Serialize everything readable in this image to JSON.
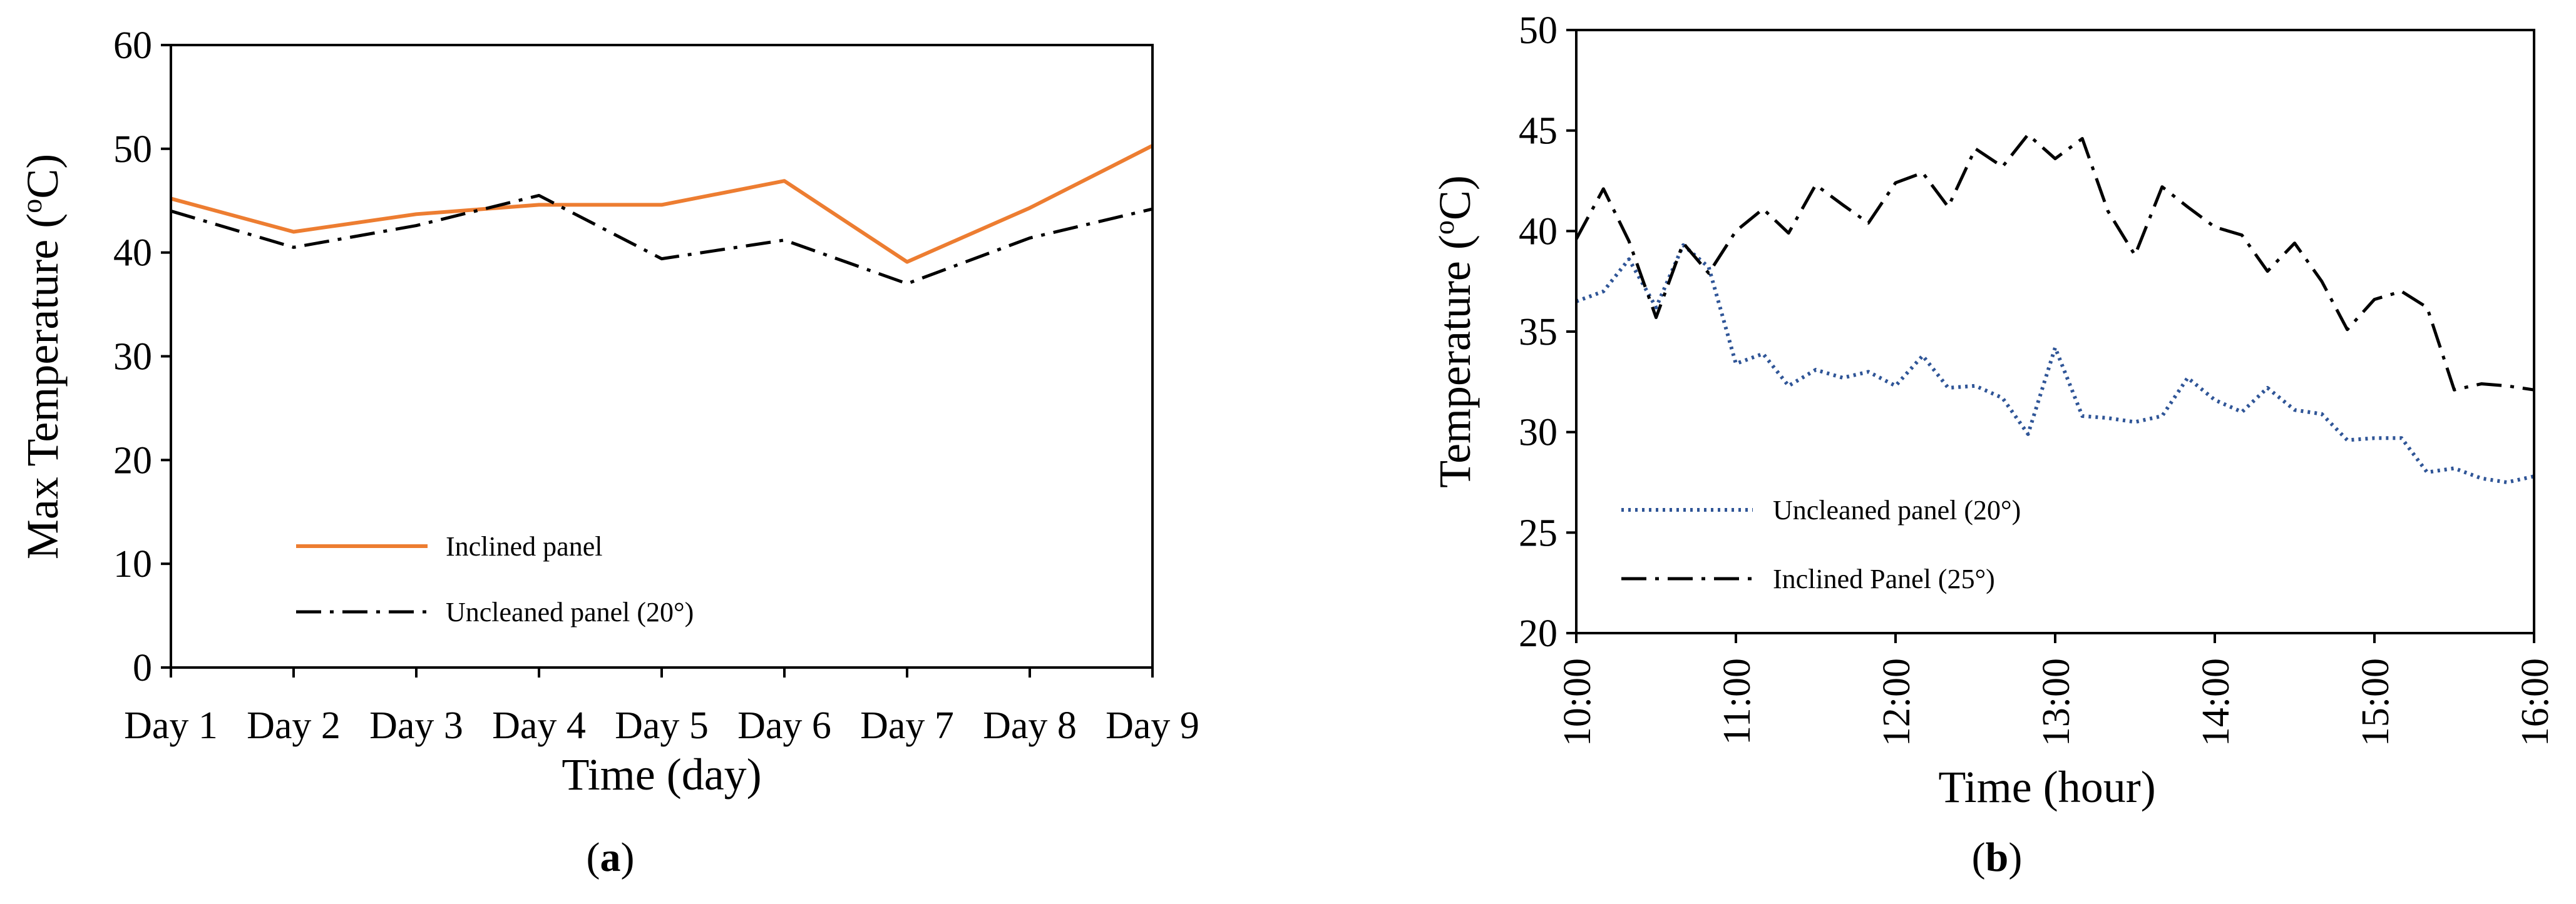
{
  "chart_data": [
    {
      "type": "line",
      "xlabel": "Time (day)",
      "ylabel": "Max Temperature (°C)",
      "ylabel_parts": [
        "Max Temperature (",
        "o",
        "C)"
      ],
      "caption_open": "(",
      "caption_letter": "a",
      "caption_close": ")",
      "categories": [
        "Day 1",
        "Day 2",
        "Day 3",
        "Day 4",
        "Day 5",
        "Day 6",
        "Day 7",
        "Day 8",
        "Day 9"
      ],
      "ylim": [
        0,
        60
      ],
      "yticks": [
        0,
        10,
        20,
        30,
        40,
        50,
        60
      ],
      "series": [
        {
          "name": "Inclined panel",
          "color": "#ED7D31",
          "style": "solid",
          "values": [
            45.2,
            42.0,
            43.7,
            44.6,
            44.6,
            46.9,
            39.1,
            44.3,
            50.3
          ]
        },
        {
          "name": "Uncleaned panel (20°)",
          "color": "#000000",
          "style": "dashdot",
          "values": [
            44.0,
            40.5,
            42.6,
            45.5,
            39.4,
            41.2,
            37.0,
            41.4,
            44.2
          ]
        }
      ]
    },
    {
      "type": "line",
      "xlabel": "Time (hour)",
      "ylabel": "Temperature (°C)",
      "ylabel_parts": [
        "Temperature (",
        "o",
        "C)"
      ],
      "caption_open": "(",
      "caption_letter": "b",
      "caption_close": ")",
      "xlim": [
        10,
        16
      ],
      "xticks": [
        10,
        11,
        12,
        13,
        14,
        15,
        16
      ],
      "xtick_labels": [
        "10:00",
        "11:00",
        "12:00",
        "13:00",
        "14:00",
        "15:00",
        "16:00"
      ],
      "ylim": [
        20,
        50
      ],
      "yticks": [
        20,
        25,
        30,
        35,
        40,
        45,
        50
      ],
      "series": [
        {
          "name": "Uncleaned panel (20°)",
          "color": "#2F5597",
          "style": "dotted",
          "x": [
            10.0,
            10.17,
            10.33,
            10.5,
            10.67,
            10.83,
            11.0,
            11.17,
            11.33,
            11.5,
            11.67,
            11.83,
            12.0,
            12.17,
            12.33,
            12.5,
            12.67,
            12.83,
            13.0,
            13.17,
            13.33,
            13.5,
            13.67,
            13.83,
            14.0,
            14.17,
            14.33,
            14.5,
            14.67,
            14.83,
            15.0,
            15.17,
            15.33,
            15.5,
            15.67,
            15.83,
            16.0
          ],
          "values": [
            36.5,
            37.0,
            38.6,
            36.2,
            39.3,
            38.2,
            33.4,
            33.9,
            32.3,
            33.1,
            32.7,
            33.0,
            32.3,
            33.8,
            32.2,
            32.3,
            31.7,
            29.9,
            34.2,
            30.8,
            30.7,
            30.5,
            30.8,
            32.7,
            31.6,
            31.0,
            32.2,
            31.1,
            30.9,
            29.6,
            29.7,
            29.7,
            28.0,
            28.2,
            27.7,
            27.5,
            27.8
          ]
        },
        {
          "name": "Inclined Panel (25°)",
          "color": "#000000",
          "style": "dashdot",
          "x": [
            10.0,
            10.17,
            10.33,
            10.5,
            10.67,
            10.83,
            11.0,
            11.17,
            11.33,
            11.5,
            11.67,
            11.83,
            12.0,
            12.17,
            12.33,
            12.5,
            12.67,
            12.83,
            13.0,
            13.17,
            13.33,
            13.5,
            13.67,
            13.83,
            14.0,
            14.17,
            14.33,
            14.5,
            14.67,
            14.83,
            15.0,
            15.17,
            15.33,
            15.5,
            15.67,
            15.83,
            16.0
          ],
          "values": [
            39.6,
            42.1,
            39.5,
            35.7,
            39.4,
            37.9,
            40.0,
            41.1,
            39.9,
            42.3,
            41.3,
            40.4,
            42.4,
            42.9,
            41.2,
            44.1,
            43.2,
            44.8,
            43.6,
            44.6,
            41.0,
            38.8,
            42.2,
            41.2,
            40.2,
            39.8,
            38.0,
            39.4,
            37.5,
            35.1,
            36.6,
            37.0,
            36.2,
            32.1,
            32.4,
            32.3,
            32.1
          ]
        }
      ]
    }
  ]
}
